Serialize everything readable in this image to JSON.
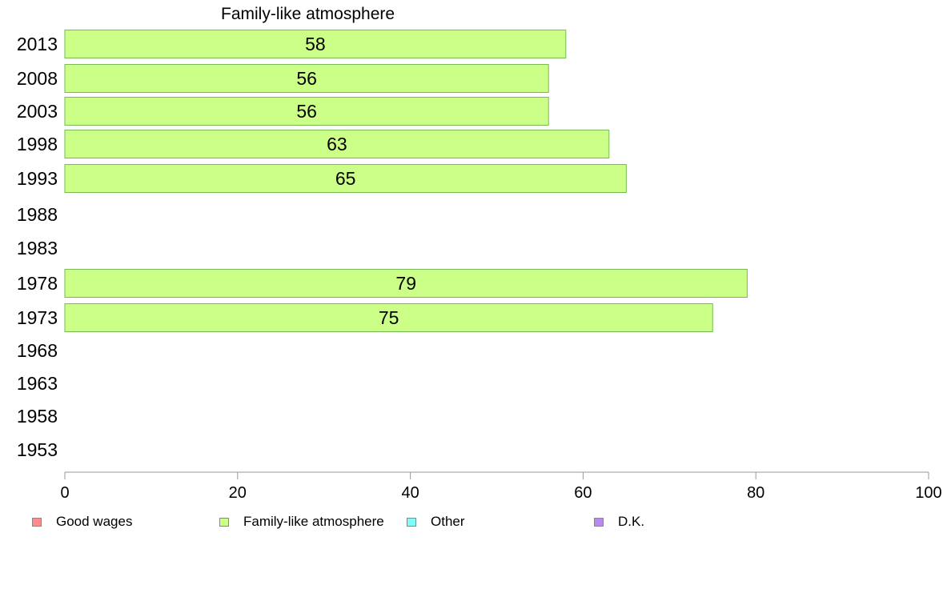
{
  "chart_data": {
    "type": "bar",
    "orientation": "horizontal",
    "title": "Family-like atmosphere",
    "categories": [
      "2013",
      "2008",
      "2003",
      "1998",
      "1993",
      "1988",
      "1983",
      "1978",
      "1973",
      "1968",
      "1963",
      "1958",
      "1953"
    ],
    "series": [
      {
        "name": "Family-like atmosphere",
        "values": [
          58,
          56,
          56,
          63,
          65,
          null,
          null,
          79,
          75,
          null,
          null,
          null,
          null
        ]
      }
    ],
    "xlim": [
      0,
      100
    ],
    "xticks": [
      0,
      20,
      40,
      60,
      80,
      100
    ],
    "colors": {
      "bar_fill": "#ccff88",
      "bar_stroke": "#77bb55"
    },
    "legend": {
      "position": "bottom",
      "items": [
        {
          "label": "Good wages",
          "color": "#ff8c8c"
        },
        {
          "label": "Family-like atmosphere",
          "color": "#ccff88"
        },
        {
          "label": "Other",
          "color": "#7ffcfc"
        },
        {
          "label": "D.K.",
          "color": "#bb88ee"
        }
      ]
    }
  }
}
